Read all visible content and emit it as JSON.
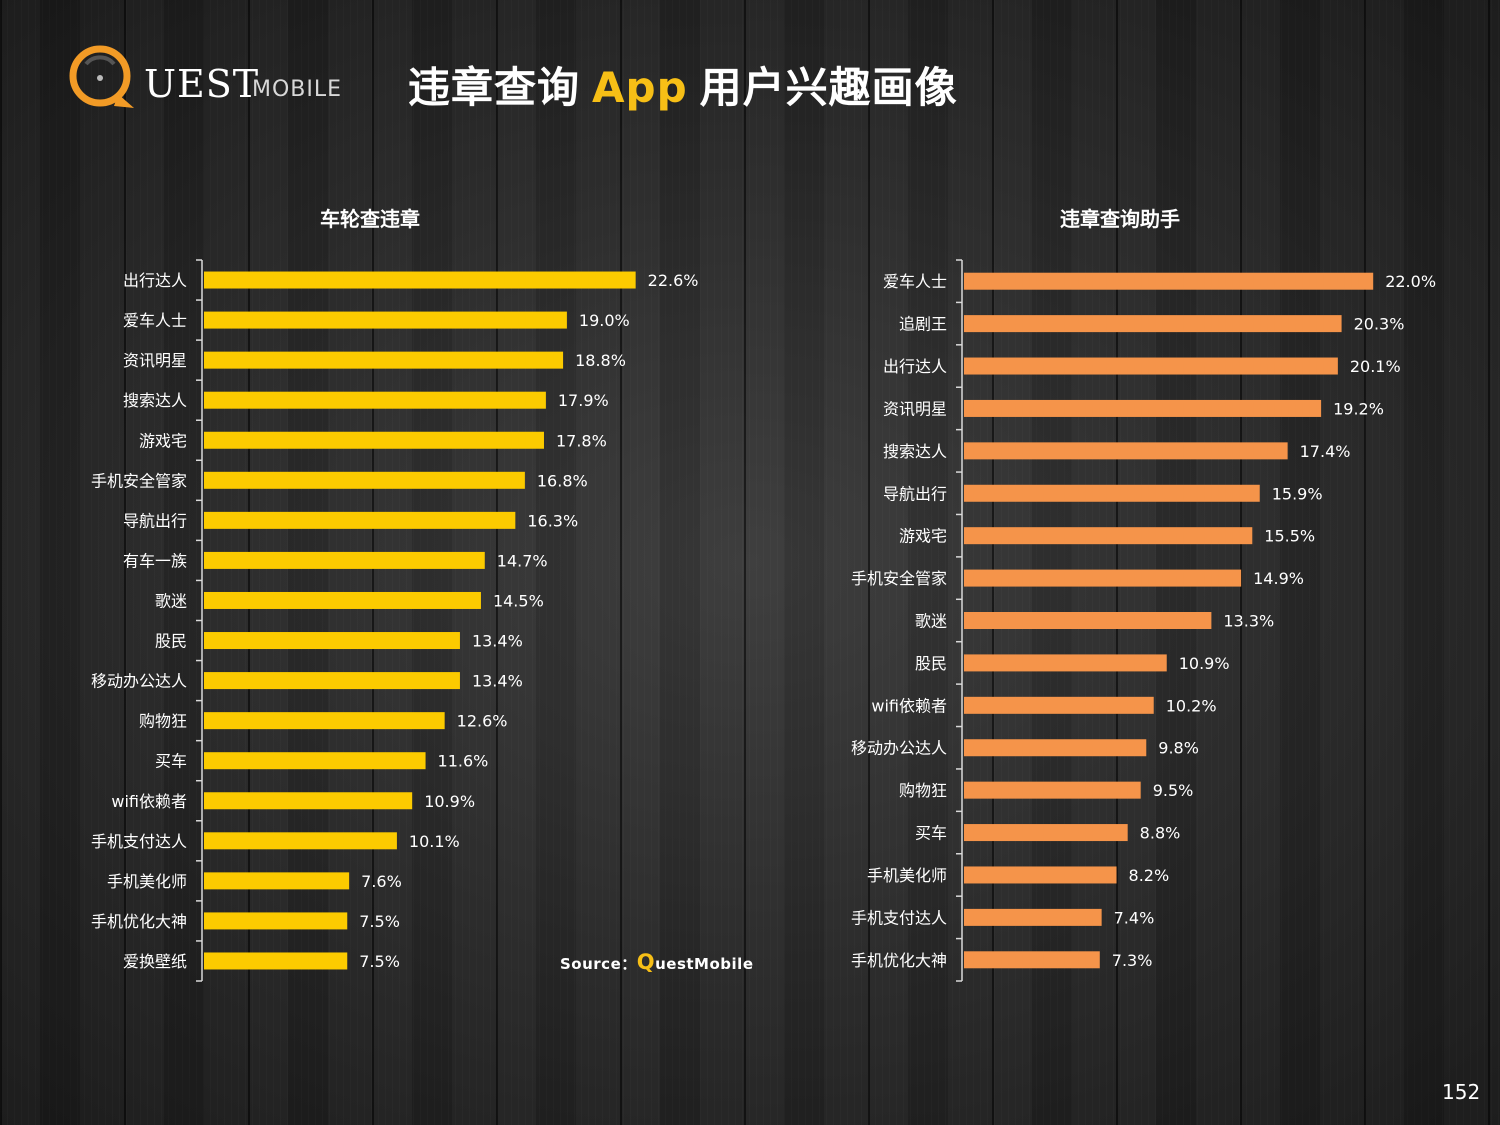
{
  "brand": {
    "logo_q": "UEST",
    "logo_mobile": "MOBILE",
    "accent": "#f7bf16",
    "logo_orange": "#f29b26"
  },
  "header": {
    "title_part1": "违章查询",
    "title_app": "App",
    "title_part2": "用户兴趣画像"
  },
  "source": {
    "label": "Source：",
    "q": "Q",
    "rest": "uestMobile"
  },
  "page_number": "152",
  "chart_data": [
    {
      "type": "bar",
      "orientation": "horizontal",
      "title": "车轮查违章",
      "color": "#fccb00",
      "categories": [
        "出行达人",
        "爱车人士",
        "资讯明星",
        "搜索达人",
        "游戏宅",
        "手机安全管家",
        "导航出行",
        "有车一族",
        "歌迷",
        "股民",
        "移动办公达人",
        "购物狂",
        "买车",
        "wifi依赖者",
        "手机支付达人",
        "手机美化师",
        "手机优化大神",
        "爱换壁纸"
      ],
      "values": [
        22.6,
        19.0,
        18.8,
        17.9,
        17.8,
        16.8,
        16.3,
        14.7,
        14.5,
        13.4,
        13.4,
        12.6,
        11.6,
        10.9,
        10.1,
        7.6,
        7.5,
        7.5
      ],
      "labels": [
        "22.6%",
        "19.0%",
        "18.8%",
        "17.9%",
        "17.8%",
        "16.8%",
        "16.3%",
        "14.7%",
        "14.5%",
        "13.4%",
        "13.4%",
        "12.6%",
        "11.6%",
        "10.9%",
        "10.1%",
        "7.6%",
        "7.5%",
        "7.5%"
      ],
      "unit": "%"
    },
    {
      "type": "bar",
      "orientation": "horizontal",
      "title": "违章查询助手",
      "color": "#f5944a",
      "categories": [
        "爱车人士",
        "追剧王",
        "出行达人",
        "资讯明星",
        "搜索达人",
        "导航出行",
        "游戏宅",
        "手机安全管家",
        "歌迷",
        "股民",
        "wifi依赖者",
        "移动办公达人",
        "购物狂",
        "买车",
        "手机美化师",
        "手机支付达人",
        "手机优化大神"
      ],
      "values": [
        22.0,
        20.3,
        20.1,
        19.2,
        17.4,
        15.9,
        15.5,
        14.9,
        13.3,
        10.9,
        10.2,
        9.8,
        9.5,
        8.8,
        8.2,
        7.4,
        7.3
      ],
      "labels": [
        "22.0%",
        "20.3%",
        "20.1%",
        "19.2%",
        "17.4%",
        "15.9%",
        "15.5%",
        "14.9%",
        "13.3%",
        "10.9%",
        "10.2%",
        "9.8%",
        "9.5%",
        "8.8%",
        "8.2%",
        "7.4%",
        "7.3%"
      ],
      "unit": "%"
    }
  ]
}
